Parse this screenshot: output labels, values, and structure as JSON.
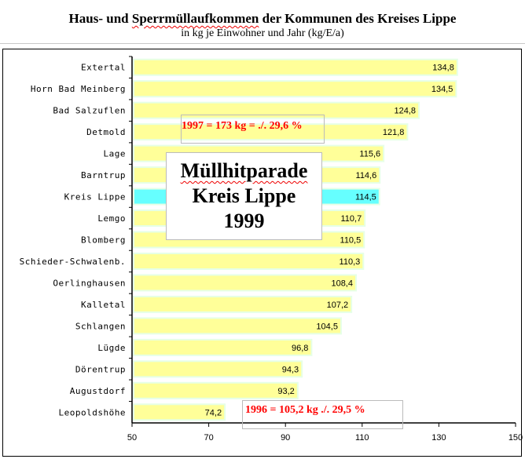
{
  "header": {
    "title_pre": "Haus- und ",
    "title_spell": "Sperrmüllaufkommen",
    "title_post": " der Kommunen des Kreises Lippe",
    "subtitle": "in kg je Einwohner und Jahr (kg/E/a)"
  },
  "annotations": {
    "note_1997": "1997 = 173 kg = ./. 29,6 %",
    "note_1996": "1996 = 105,2 kg ./. 29,5 %",
    "box_line1": "Müllhitparade",
    "box_line2": "Kreis Lippe",
    "box_line3": "1999"
  },
  "colors": {
    "bar": "#ffff99",
    "bar_border": "#e6ffe6",
    "highlight": "#66ffff",
    "note": "#ff0000"
  },
  "chart_data": {
    "type": "bar",
    "orientation": "horizontal",
    "title": "Haus- und Sperrmüllaufkommen der Kommunen des Kreises Lippe",
    "subtitle": "in kg je Einwohner und Jahr (kg/E/a)",
    "categories": [
      "Extertal",
      "Horn Bad Meinberg",
      "Bad Salzuflen",
      "Detmold",
      "Lage",
      "Barntrup",
      "Kreis Lippe",
      "Lemgo",
      "Blomberg",
      "Schieder-Schwalenb.",
      "Oerlinghausen",
      "Kalletal",
      "Schlangen",
      "Lügde",
      "Dörentrup",
      "Augustdorf",
      "Leopoldshöhe"
    ],
    "values": [
      134.8,
      134.5,
      124.8,
      121.8,
      115.6,
      114.6,
      114.5,
      110.7,
      110.5,
      110.3,
      108.4,
      107.2,
      104.5,
      96.8,
      94.3,
      93.2,
      74.2
    ],
    "labels": [
      "134,8",
      "134,5",
      "124,8",
      "121,8",
      "115,6",
      "114,6",
      "114,5",
      "110,7",
      "110,5",
      "110,3",
      "108,4",
      "107,2",
      "104,5",
      "96,8",
      "94,3",
      "93,2",
      "74,2"
    ],
    "highlight": "Kreis Lippe",
    "xlim": [
      50,
      150
    ],
    "xticks": [
      50,
      70,
      90,
      110,
      130,
      150
    ],
    "xlabel": "",
    "ylabel": "",
    "grid": false
  }
}
